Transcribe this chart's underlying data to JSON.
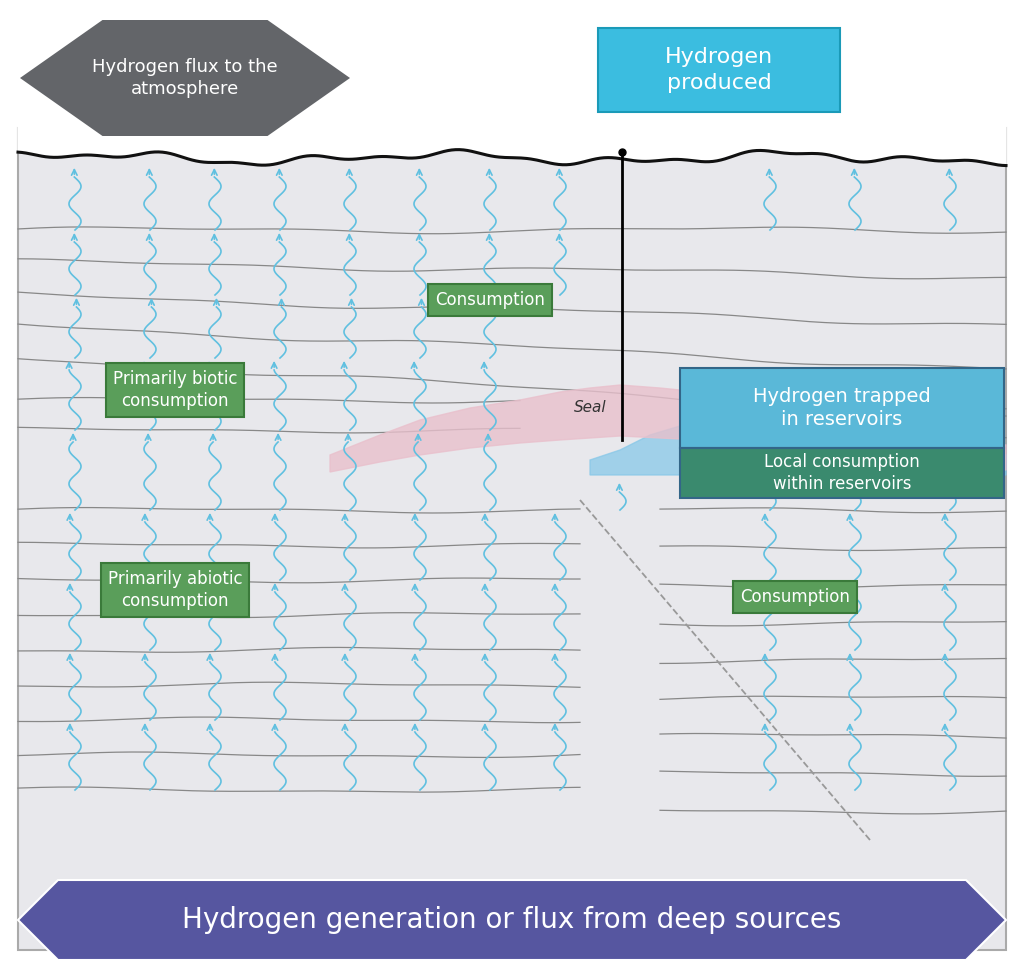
{
  "bg_color": "#e8e8ec",
  "title_bottom": "Hydrogen generation or flux from deep sources",
  "title_atm": "Hydrogen flux to the\natmosphere",
  "title_produced": "Hydrogen\nproduced",
  "label_consumption_upper": "Consumption",
  "label_biotic": "Primarily biotic\nconsumption",
  "label_trapped": "Hydrogen trapped\nin reservoirs",
  "label_local": "Local consumption\nwithin reservoirs",
  "label_abiotic": "Primarily abiotic\nconsumption",
  "label_consumption_lower": "Consumption",
  "label_seal": "Seal",
  "atm_color": "#636569",
  "produced_color": "#3bbde0",
  "bottom_color": "#5656a0",
  "consumption_bg": "#5a9e5a",
  "consumption_edge": "#3a7a3a",
  "trapped_color": "#5ab8d8",
  "local_color": "#3a8a6e",
  "arrow_color": "#60c0e0",
  "seal_color": "#e8c0cc",
  "reservoir_blue": "#88c8e8",
  "layer_color": "#888888",
  "surface_color": "#111111"
}
